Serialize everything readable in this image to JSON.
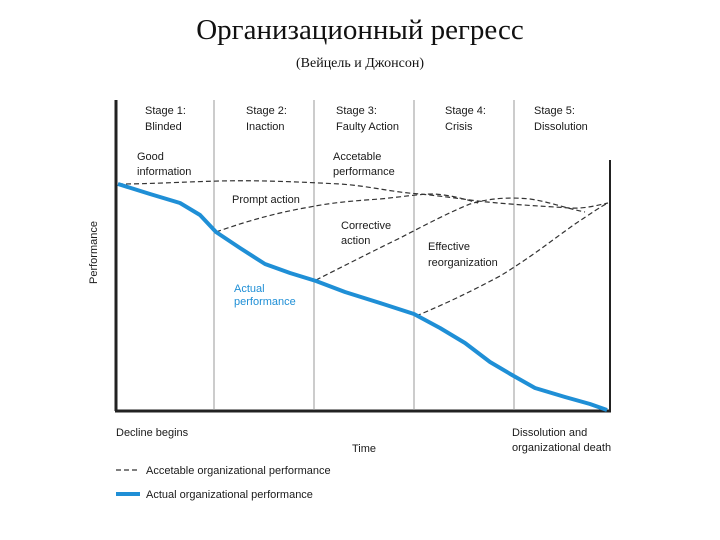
{
  "title": "Организационный регресс",
  "subtitle": "(Вейцель и Джонсон)",
  "y_axis_label": "Performance",
  "x_axis_label": "Time",
  "stages": [
    {
      "line1": "Stage 1:",
      "line2": "Blinded"
    },
    {
      "line1": "Stage 2:",
      "line2": "Inaction"
    },
    {
      "line1": "Stage 3:",
      "line2": "Faulty Action"
    },
    {
      "line1": "Stage 4:",
      "line2": "Crisis"
    },
    {
      "line1": "Stage 5:",
      "line2": "Dissolution"
    }
  ],
  "annotations": {
    "good_information": [
      "Good",
      "information"
    ],
    "acceptable_performance": [
      "Accetable",
      "performance"
    ],
    "prompt_action": [
      "Prompt action"
    ],
    "corrective_action": [
      "Corrective",
      "action"
    ],
    "effective_reorganization": [
      "Effective",
      "reorganization"
    ],
    "actual_performance": [
      "Actual",
      "performance"
    ]
  },
  "bottom_labels": {
    "decline_begins": "Decline begins",
    "dissolution": [
      "Dissolution and",
      "organizational death"
    ]
  },
  "legend": {
    "dashed_label": "Accetable organizational performance",
    "solid_label": "Actual organizational performance"
  },
  "colors": {
    "actual_line": "#1f8fd6",
    "dashed_line": "#333333",
    "frame": "#222222",
    "divider": "#9a9a9a"
  }
}
